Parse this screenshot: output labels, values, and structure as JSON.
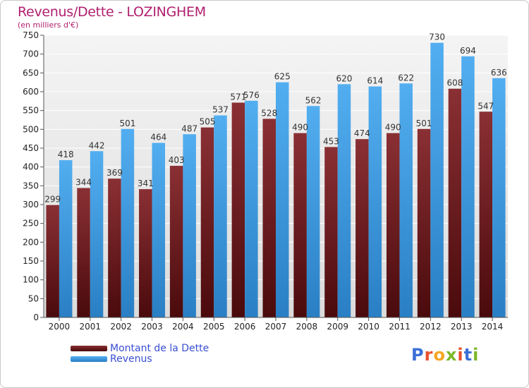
{
  "title": "Revenus/Dette - LOZINGHEM",
  "subtitle": "(en milliers d'€)",
  "colors": {
    "title": "#b0206e",
    "dette": "#7a2226",
    "revenus": "#3f9be2",
    "legend_text": "#3a4fd0"
  },
  "legend": [
    {
      "label": "Montant de la Dette",
      "color": "#7a2226"
    },
    {
      "label": "Revenus",
      "color": "#3f9be2"
    }
  ],
  "logo": {
    "text": "Proxiti"
  },
  "chart_data": {
    "type": "bar",
    "title": "Revenus/Dette - LOZINGHEM",
    "subtitle": "(en milliers d'€)",
    "categories": [
      "2000",
      "2001",
      "2002",
      "2003",
      "2004",
      "2005",
      "2006",
      "2007",
      "2008",
      "2009",
      "2010",
      "2011",
      "2012",
      "2013",
      "2014"
    ],
    "series": [
      {
        "name": "Montant de la Dette",
        "values": [
          299,
          344,
          369,
          341,
          403,
          505,
          571,
          528,
          490,
          453,
          474,
          490,
          501,
          608,
          547
        ]
      },
      {
        "name": "Revenus",
        "values": [
          418,
          442,
          501,
          464,
          487,
          537,
          576,
          625,
          562,
          620,
          614,
          622,
          730,
          694,
          636
        ]
      }
    ],
    "ylim": [
      0,
      750
    ],
    "yticks": [
      0,
      50,
      100,
      150,
      200,
      250,
      300,
      350,
      400,
      450,
      500,
      550,
      600,
      650,
      700,
      750
    ],
    "grid": true,
    "legend_position": "bottom-left"
  }
}
